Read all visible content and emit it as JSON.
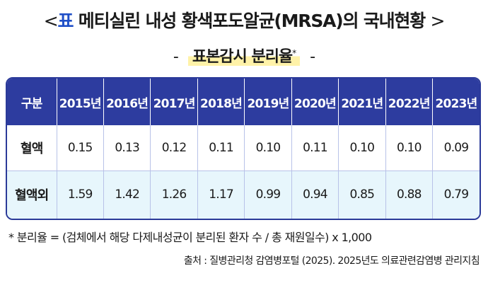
{
  "title": {
    "open_bracket": "<",
    "label": "표",
    "text": " 메티실린 내성 황색포도알균(MRSA)의 국내현황",
    "close_bracket": ">"
  },
  "subtitle": {
    "dash_left": "-",
    "text": "표본감시 분리율",
    "marker": "*",
    "dash_right": "-"
  },
  "table": {
    "header": [
      "구분",
      "2015년",
      "2016년",
      "2017년",
      "2018년",
      "2019년",
      "2020년",
      "2021년",
      "2022년",
      "2023년"
    ],
    "rows": [
      {
        "label": "혈액",
        "values": [
          "0.15",
          "0.13",
          "0.12",
          "0.11",
          "0.10",
          "0.11",
          "0.10",
          "0.10",
          "0.09"
        ]
      },
      {
        "label": "혈액외",
        "values": [
          "1.59",
          "1.42",
          "1.26",
          "1.17",
          "0.99",
          "0.94",
          "0.85",
          "0.88",
          "0.79"
        ]
      }
    ]
  },
  "note": "* 분리율 = (검체에서 해당 다제내성균이 분리된 환자 수 / 총 재원일수) x 1,000",
  "source": "출처 : 질병관리청 감염병포털 (2025). 2025년도 의료관련감염병 관리지침",
  "colors": {
    "header_bg": "#2d3c9f",
    "title_accent": "#1f4fc7",
    "highlight": "#fff2a8",
    "row2_bg": "#e7f6fc"
  }
}
